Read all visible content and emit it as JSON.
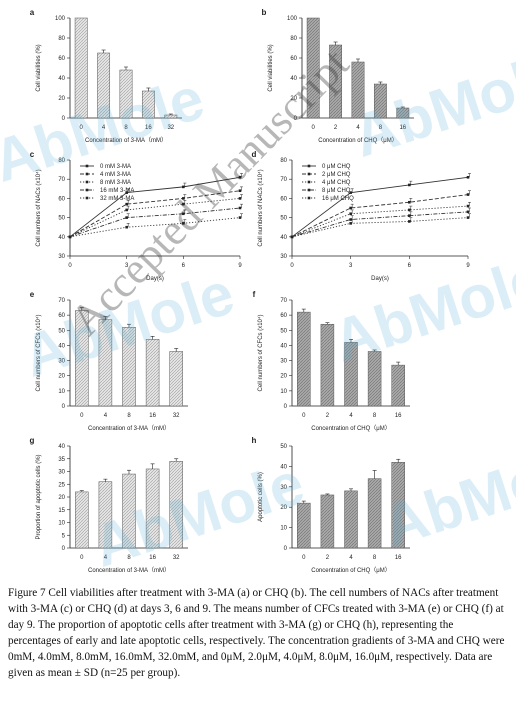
{
  "watermarks": {
    "brand": "AbMole",
    "manuscript": "Accepted Manuscript"
  },
  "caption": "Figure 7 Cell viabilities after treatment with 3-MA (a) or CHQ (b). The cell numbers of NACs after treatment with 3-MA (c) or CHQ (d) at days 3, 6 and 9. The means number of CFCs treated with 3-MA (e) or CHQ (f) at day 9. The proportion of apoptotic cells after treatment with 3-MA (g) or CHQ (h), representing the percentages of early and late apoptotic cells, respectively. The concentration gradients of 3-MA and CHQ were 0mM, 4.0mM, 8.0mM, 16.0mM, 32.0mM, and 0μM, 2.0μM, 4.0μM, 8.0μM, 16.0μM, respectively. Data are given as mean ± SD (n=25 per group).",
  "colors": {
    "bar_light": "#dcdcdc",
    "bar_dark": "#9a9a9a",
    "axis": "#222222",
    "watermark": "#5fb2d8"
  },
  "chart_data": [
    {
      "panel": "a",
      "type": "bar",
      "pattern": "light",
      "categories": [
        "0",
        "4",
        "8",
        "16",
        "32"
      ],
      "values": [
        100,
        65,
        48,
        27,
        3
      ],
      "errors": [
        0,
        3,
        3,
        3,
        1
      ],
      "ylabel": "Cell viabilities (%)",
      "xlabel": "Concentration of 3-MA（mM）",
      "ylim": [
        0,
        100
      ],
      "yticks": [
        0,
        20,
        40,
        60,
        80,
        100
      ]
    },
    {
      "panel": "b",
      "type": "bar",
      "pattern": "dark",
      "categories": [
        "0",
        "2",
        "4",
        "8",
        "16"
      ],
      "values": [
        100,
        73,
        56,
        34,
        10
      ],
      "errors": [
        0,
        3,
        3,
        2,
        1
      ],
      "ylabel": "Cell viabilities (%)",
      "xlabel": "Concentration of CHQ（μM）",
      "ylim": [
        0,
        100
      ],
      "yticks": [
        0,
        20,
        40,
        60,
        80,
        100
      ]
    },
    {
      "panel": "c",
      "type": "line",
      "x": [
        0,
        3,
        6,
        9
      ],
      "xticks": [
        0,
        3,
        6,
        9
      ],
      "series": [
        {
          "name": "0 mM 3-MA",
          "values": [
            40,
            63,
            66,
            71
          ],
          "errors": [
            0,
            2,
            2,
            2
          ],
          "dash": "solid"
        },
        {
          "name": "4 mM 3-MA",
          "values": [
            40,
            57,
            60,
            64
          ],
          "errors": [
            0,
            2,
            2,
            2
          ],
          "dash": "dash"
        },
        {
          "name": "8 mM 3-MA",
          "values": [
            40,
            54,
            57,
            60
          ],
          "errors": [
            0,
            2,
            2,
            2
          ],
          "dash": "dot"
        },
        {
          "name": "16 mM 3-MA",
          "values": [
            40,
            50,
            52,
            55
          ],
          "errors": [
            0,
            2,
            2,
            2
          ],
          "dashdot": true,
          "dash": "dashdot"
        },
        {
          "name": "32 mM 3-MA",
          "values": [
            40,
            45,
            47,
            50
          ],
          "errors": [
            0,
            2,
            2,
            2
          ],
          "dash": "dot"
        }
      ],
      "ylabel": "Cell numbers of NACs (x10⁴)",
      "xlabel": "Day(s)",
      "ylim": [
        30,
        80
      ],
      "yticks": [
        30,
        40,
        50,
        60,
        70,
        80
      ]
    },
    {
      "panel": "d",
      "type": "line",
      "x": [
        0,
        3,
        6,
        9
      ],
      "xticks": [
        0,
        3,
        6,
        9
      ],
      "series": [
        {
          "name": "0 μM CHQ",
          "values": [
            40,
            63,
            67,
            71
          ],
          "errors": [
            0,
            2,
            2,
            2
          ],
          "dash": "solid"
        },
        {
          "name": "2 μM CHQ",
          "values": [
            40,
            55,
            58,
            62
          ],
          "errors": [
            0,
            2,
            2,
            2
          ],
          "dash": "dash"
        },
        {
          "name": "4 μM CHQ",
          "values": [
            40,
            52,
            54,
            56
          ],
          "errors": [
            0,
            2,
            2,
            2
          ],
          "dash": "dot"
        },
        {
          "name": "8 μM CHQ",
          "values": [
            40,
            49,
            51,
            53
          ],
          "errors": [
            0,
            2,
            2,
            2
          ],
          "dash": "dashdot"
        },
        {
          "name": "16 μM CHQ",
          "values": [
            40,
            47,
            48,
            50
          ],
          "errors": [
            0,
            2,
            2,
            2
          ],
          "dash": "dot"
        }
      ],
      "ylabel": "Cell numbers of NACs (x10⁴)",
      "xlabel": "Day(s)",
      "ylim": [
        30,
        80
      ],
      "yticks": [
        30,
        40,
        50,
        60,
        70,
        80
      ]
    },
    {
      "panel": "e",
      "type": "bar",
      "pattern": "light",
      "categories": [
        "0",
        "4",
        "8",
        "16",
        "32"
      ],
      "values": [
        63,
        57,
        52,
        44,
        36
      ],
      "errors": [
        2,
        2,
        2,
        2,
        2
      ],
      "ylabel": "Cell numbers of CFCs (x10⁴)",
      "xlabel": "Concentration of 3-MA（mM）",
      "ylim": [
        0,
        70
      ],
      "yticks": [
        0,
        10,
        20,
        30,
        40,
        50,
        60,
        70
      ]
    },
    {
      "panel": "f",
      "type": "bar",
      "pattern": "dark",
      "categories": [
        "0",
        "2",
        "4",
        "8",
        "16"
      ],
      "values": [
        62,
        54,
        42,
        36,
        27
      ],
      "errors": [
        2,
        1,
        2,
        1,
        2
      ],
      "ylabel": "Cell numbers of CFCs (x10⁴)",
      "xlabel": "Concentration of CHQ（μM）",
      "ylim": [
        0,
        70
      ],
      "yticks": [
        0,
        10,
        20,
        30,
        40,
        50,
        60,
        70
      ]
    },
    {
      "panel": "g",
      "type": "bar",
      "pattern": "light",
      "categories": [
        "0",
        "4",
        "8",
        "16",
        "32"
      ],
      "values": [
        22,
        26,
        29,
        31,
        34
      ],
      "errors": [
        0.5,
        1,
        1.5,
        2,
        1
      ],
      "ylabel": "Proportion of apoptotic cells (%)",
      "xlabel": "Concentration of 3-MA（mM）",
      "ylim": [
        0,
        40
      ],
      "yticks": [
        0,
        5,
        10,
        15,
        20,
        25,
        30,
        35,
        40
      ]
    },
    {
      "panel": "h",
      "type": "bar",
      "pattern": "dark",
      "categories": [
        "0",
        "2",
        "4",
        "8",
        "16"
      ],
      "values": [
        22,
        26,
        28,
        34,
        42
      ],
      "errors": [
        1,
        0.5,
        1,
        4,
        1.5
      ],
      "ylabel": "Apoptotic cells (%)",
      "xlabel": "Concentration of CHQ（μM）",
      "ylim": [
        0,
        50
      ],
      "yticks": [
        0,
        10,
        20,
        30,
        40,
        50
      ]
    }
  ]
}
